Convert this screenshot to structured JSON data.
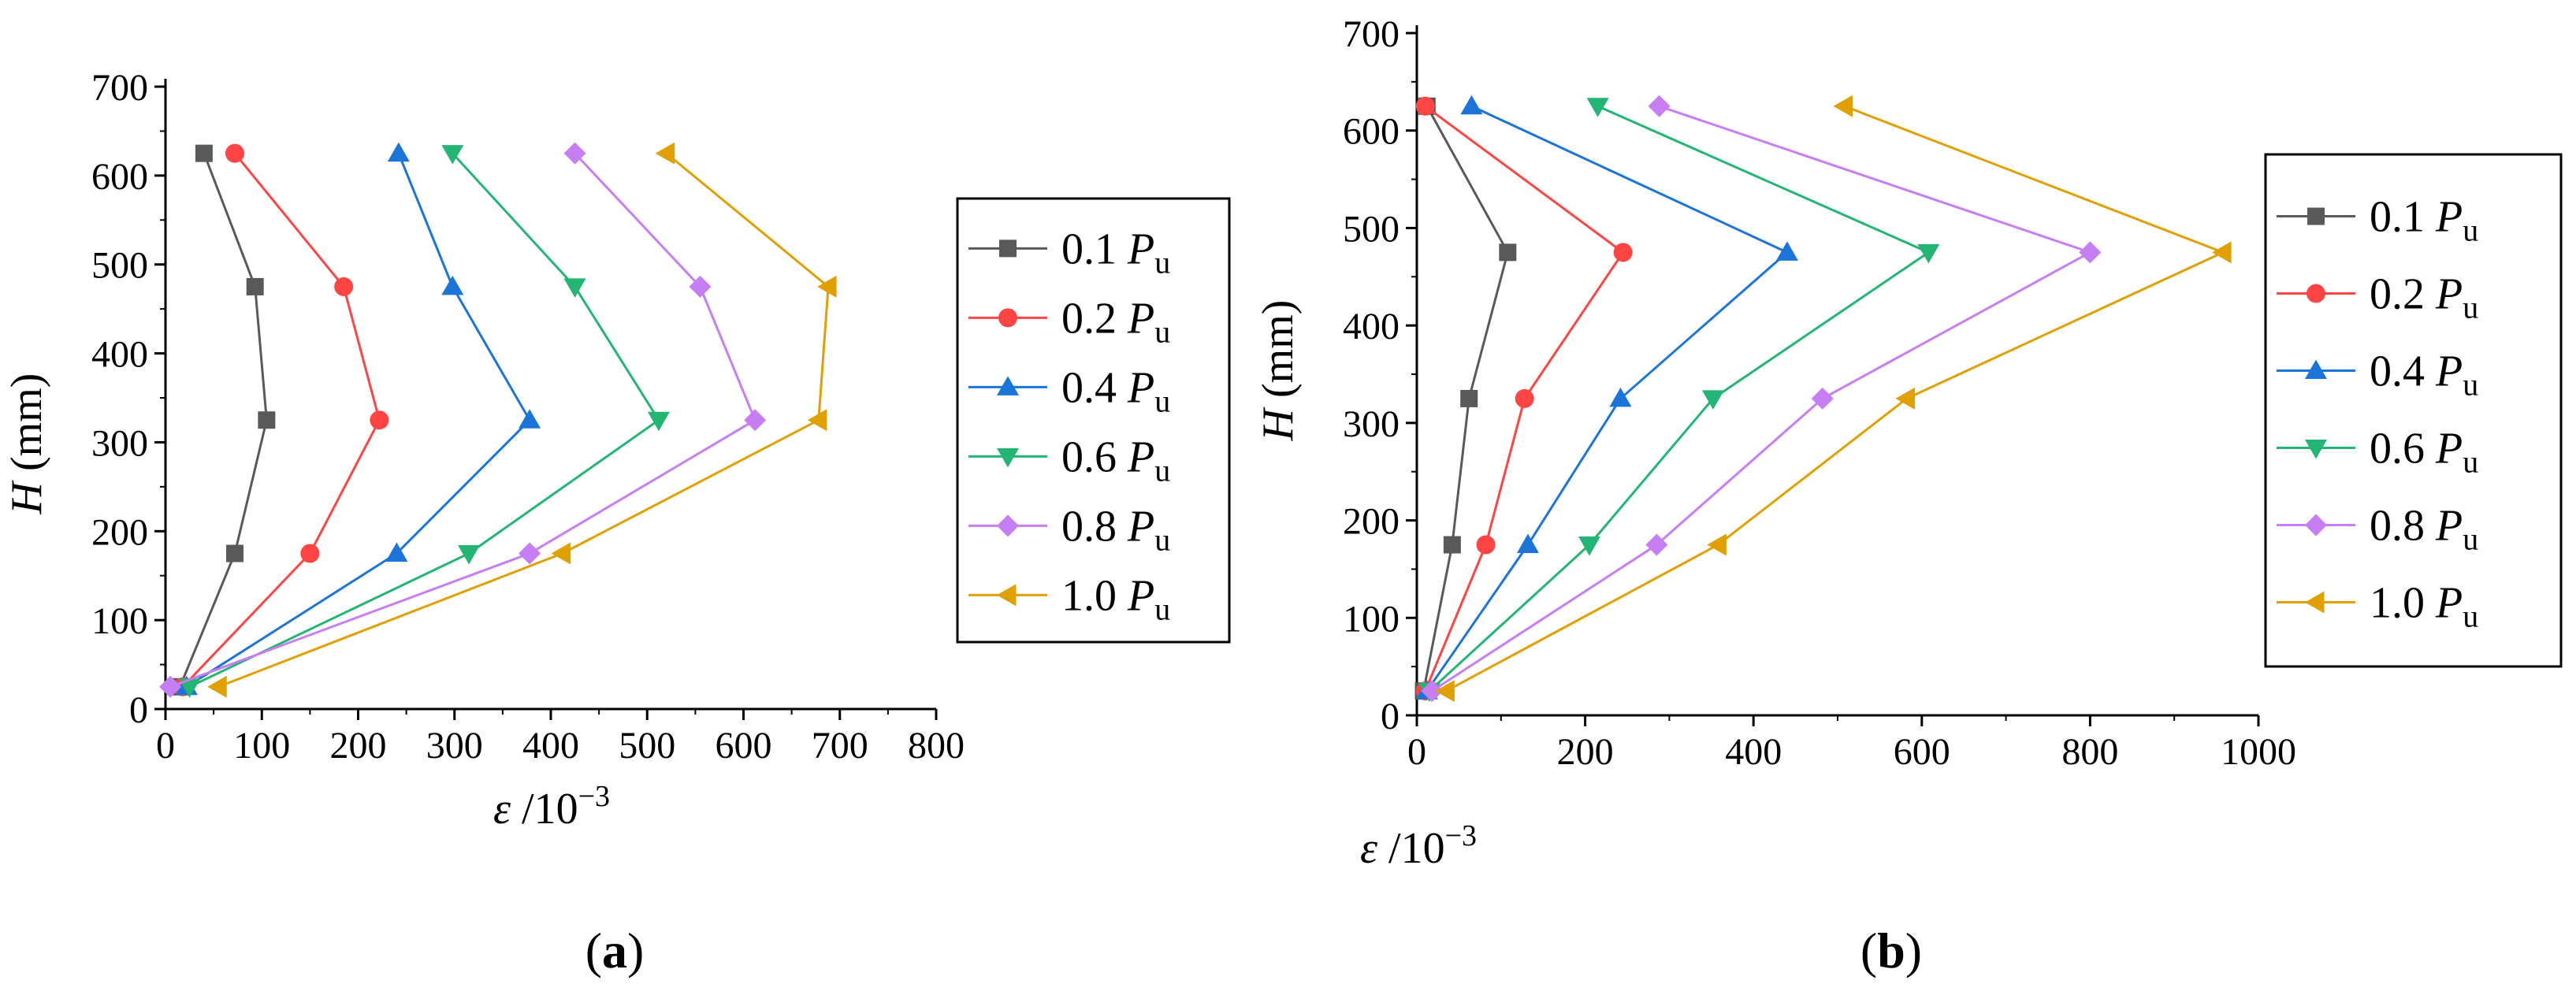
{
  "chart_data": [
    {
      "panel": "a",
      "caption": {
        "open": "(",
        "label": "a",
        "close": ")"
      },
      "type": "line",
      "xlabel": {
        "sym": "ε",
        "rest": " /10",
        "exp": "−3"
      },
      "ylabel": {
        "sym": "H",
        "rest": " (mm)"
      },
      "xlim": [
        0,
        800
      ],
      "ylim": [
        0,
        700
      ],
      "xticks": [
        "0",
        "100",
        "200",
        "300",
        "400",
        "500",
        "600",
        "700",
        "800"
      ],
      "yticks": [
        "0",
        "100",
        "200",
        "300",
        "400",
        "500",
        "600",
        "700"
      ],
      "y": [
        25,
        175,
        325,
        475,
        625
      ],
      "series": [
        {
          "coef": "0.1",
          "sym": "P",
          "sub": "u",
          "color": "#595959",
          "marker": "square",
          "x": [
            15,
            72,
            105,
            93,
            40
          ]
        },
        {
          "coef": "0.2",
          "sym": "P",
          "sub": "u",
          "color": "#ff4444",
          "marker": "circle",
          "x": [
            18,
            150,
            222,
            185,
            72
          ]
        },
        {
          "coef": "0.4",
          "sym": "P",
          "sub": "u",
          "color": "#1b75d8",
          "marker": "triangle-up",
          "x": [
            22,
            240,
            378,
            298,
            242
          ]
        },
        {
          "coef": "0.6",
          "sym": "P",
          "sub": "u",
          "color": "#22b573",
          "marker": "triangle-down",
          "x": [
            25,
            315,
            512,
            425,
            298
          ]
        },
        {
          "coef": "0.8",
          "sym": "P",
          "sub": "u",
          "color": "#c77df3",
          "marker": "diamond",
          "x": [
            5,
            378,
            612,
            555,
            425
          ]
        },
        {
          "coef": "1.0",
          "sym": "P",
          "sub": "u",
          "color": "#e0a000",
          "marker": "triangle-left",
          "x": [
            55,
            412,
            678,
            688,
            520
          ]
        }
      ]
    },
    {
      "panel": "b",
      "caption": {
        "open": "(",
        "label": "b",
        "close": ")"
      },
      "type": "line",
      "xlabel": {
        "sym": "ε",
        "rest": " /10",
        "exp": "−3"
      },
      "ylabel": {
        "sym": "H",
        "rest": " (mm)"
      },
      "xlim": [
        0,
        1000
      ],
      "ylim": [
        0,
        700
      ],
      "xticks": [
        "0",
        "200",
        "400",
        "600",
        "800",
        "1000"
      ],
      "yticks": [
        "0",
        "100",
        "200",
        "300",
        "400",
        "500",
        "600",
        "700"
      ],
      "y": [
        25,
        175,
        325,
        475,
        625
      ],
      "series": [
        {
          "coef": "0.1",
          "sym": "P",
          "sub": "u",
          "color": "#595959",
          "marker": "square",
          "x": [
            8,
            42,
            62,
            108,
            12
          ]
        },
        {
          "coef": "0.2",
          "sym": "P",
          "sub": "u",
          "color": "#ff4444",
          "marker": "circle",
          "x": [
            10,
            82,
            128,
            245,
            10
          ]
        },
        {
          "coef": "0.4",
          "sym": "P",
          "sub": "u",
          "color": "#1b75d8",
          "marker": "triangle-up",
          "x": [
            12,
            132,
            242,
            440,
            65
          ]
        },
        {
          "coef": "0.6",
          "sym": "P",
          "sub": "u",
          "color": "#22b573",
          "marker": "triangle-down",
          "x": [
            15,
            205,
            352,
            608,
            215
          ]
        },
        {
          "coef": "0.8",
          "sym": "P",
          "sub": "u",
          "color": "#c77df3",
          "marker": "diamond",
          "x": [
            18,
            285,
            482,
            800,
            288
          ]
        },
        {
          "coef": "1.0",
          "sym": "P",
          "sub": "u",
          "color": "#e0a000",
          "marker": "triangle-left",
          "x": [
            35,
            358,
            582,
            958,
            508
          ]
        }
      ]
    }
  ]
}
